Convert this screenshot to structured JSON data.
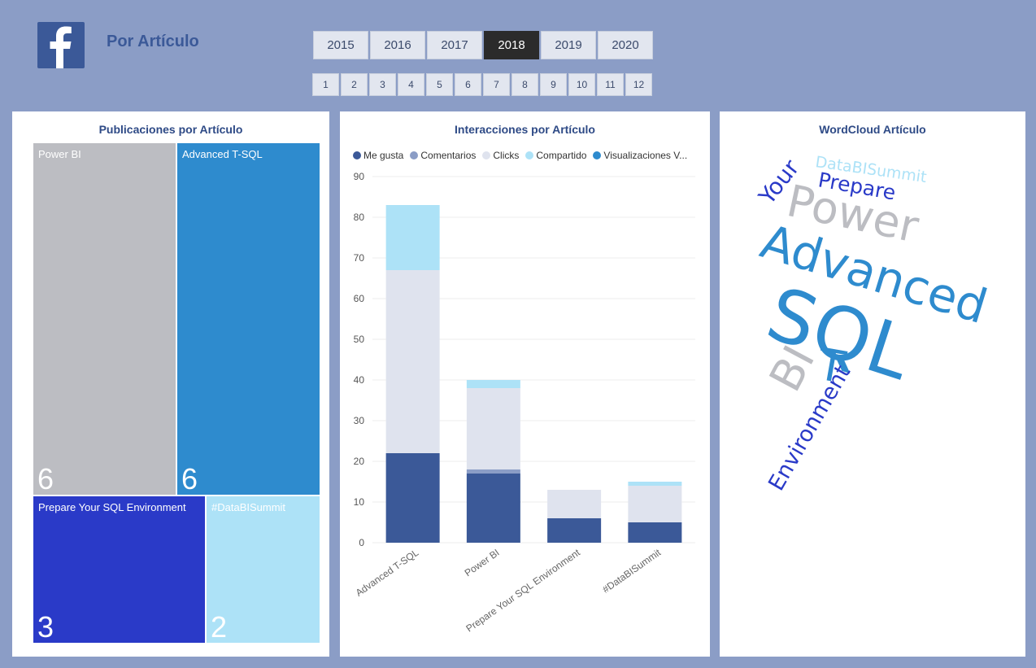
{
  "header": {
    "title": "Por Artículo",
    "logo_icon": "facebook-icon"
  },
  "year_slicer": {
    "options": [
      "2015",
      "2016",
      "2017",
      "2018",
      "2019",
      "2020"
    ],
    "selected": "2018"
  },
  "month_slicer": {
    "options": [
      "1",
      "2",
      "3",
      "4",
      "5",
      "6",
      "7",
      "8",
      "9",
      "10",
      "11",
      "12"
    ]
  },
  "treemap": {
    "title": "Publicaciones por Artículo",
    "items": [
      {
        "label": "Power BI",
        "value": "6",
        "color": "#bcbdc2"
      },
      {
        "label": "Advanced T-SQL",
        "value": "6",
        "color": "#2e8bce"
      },
      {
        "label": "Prepare Your SQL Environment",
        "value": "3",
        "color": "#2a3ac8"
      },
      {
        "label": "#DataBISummit",
        "value": "2",
        "color": "#ade2f7"
      }
    ]
  },
  "interactions": {
    "title": "Interacciones por Artículo",
    "legend": [
      {
        "label": "Me gusta",
        "color": "#3b5998"
      },
      {
        "label": "Comentarios",
        "color": "#8b9dc6"
      },
      {
        "label": "Clicks",
        "color": "#dfe3ee"
      },
      {
        "label": "Compartido",
        "color": "#ade2f7"
      },
      {
        "label": "Visualizaciones V...",
        "color": "#2e8bce"
      }
    ]
  },
  "chart_data": {
    "type": "bar",
    "stacked": true,
    "title": "Interacciones por Artículo",
    "categories": [
      "Advanced T-SQL",
      "Power BI",
      "Prepare Your SQL Environment",
      "#DataBISummit"
    ],
    "series": [
      {
        "name": "Me gusta",
        "color": "#3b5998",
        "values": [
          22,
          17,
          6,
          5
        ]
      },
      {
        "name": "Comentarios",
        "color": "#8b9dc6",
        "values": [
          0,
          1,
          0,
          0
        ]
      },
      {
        "name": "Clicks",
        "color": "#dfe3ee",
        "values": [
          45,
          20,
          7,
          9
        ]
      },
      {
        "name": "Compartido",
        "color": "#ade2f7",
        "values": [
          16,
          2,
          0,
          1
        ]
      },
      {
        "name": "Visualizaciones V...",
        "color": "#2e8bce",
        "values": [
          0,
          0,
          0,
          0
        ]
      }
    ],
    "yticks": [
      "0",
      "10",
      "20",
      "30",
      "40",
      "50",
      "60",
      "70",
      "80",
      "90"
    ],
    "ylim": [
      0,
      90
    ],
    "xlabel": "",
    "ylabel": ""
  },
  "wordcloud": {
    "title": "WordCloud Artículo",
    "words": [
      {
        "text": "DataBISummit",
        "color": "#ade2f7"
      },
      {
        "text": "Your",
        "color": "#2a3ac8"
      },
      {
        "text": "Prepare",
        "color": "#2a3ac8"
      },
      {
        "text": "Power",
        "color": "#bcbdc2"
      },
      {
        "text": "Advanced",
        "color": "#2e8bce"
      },
      {
        "text": "SQL",
        "color": "#2e8bce"
      },
      {
        "text": "BI",
        "color": "#bcbdc2"
      },
      {
        "text": "T",
        "color": "#2e8bce"
      },
      {
        "text": "Environment",
        "color": "#2a3ac8"
      }
    ]
  }
}
